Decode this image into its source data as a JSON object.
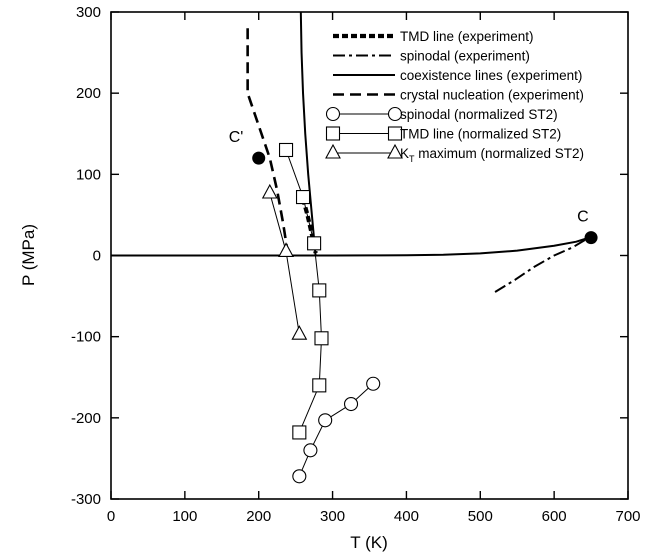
{
  "chart_data": {
    "type": "line",
    "xlabel": "T (K)",
    "ylabel": "P (MPa)",
    "xlim": [
      0,
      700
    ],
    "ylim": [
      -300,
      300
    ],
    "xticks": [
      0,
      100,
      200,
      300,
      400,
      500,
      600,
      700
    ],
    "yticks": [
      -300,
      -200,
      -100,
      0,
      100,
      200,
      300
    ],
    "grid": false,
    "legend_position": "top-right",
    "series": [
      {
        "name": "TMD line (experiment)",
        "style": "thick-dashed",
        "color": "#000000",
        "x": [
          260,
          263,
          266,
          268,
          270,
          272,
          274,
          276,
          277
        ],
        "y": [
          70,
          60,
          50,
          42,
          34,
          26,
          18,
          10,
          3
        ]
      },
      {
        "name": "spinodal (experiment)",
        "style": "dash-dot",
        "color": "#000000",
        "x": [
          520,
          547,
          573,
          600,
          625,
          647
        ],
        "y": [
          -45,
          -30,
          -14,
          0,
          10,
          22
        ]
      },
      {
        "name": "coexistence lines (experiment)",
        "style": "solid",
        "color": "#000000",
        "x": [
          0,
          100,
          200,
          273,
          300,
          350,
          400,
          450,
          500,
          550,
          600,
          630,
          647
        ],
        "y": [
          0,
          0,
          0,
          0,
          0,
          0.1,
          0.25,
          0.9,
          2.6,
          6,
          12,
          17,
          22
        ]
      },
      {
        "name": "coexistence lines (experiment)",
        "style": "solid",
        "color": "#000000",
        "x": [
          257,
          258,
          260,
          263,
          267,
          272,
          277
        ],
        "y": [
          300,
          250,
          200,
          150,
          100,
          50,
          0
        ]
      },
      {
        "name": "crystal nucleation (experiment)",
        "style": "dashed",
        "color": "#000000",
        "x": [
          185,
          185,
          200,
          215,
          225,
          233,
          239
        ],
        "y": [
          280,
          200,
          160,
          120,
          80,
          40,
          5
        ]
      },
      {
        "name": "spinodal (normalized ST2)",
        "style": "solid-circle",
        "color": "#000000",
        "x": [
          255,
          270,
          290,
          325,
          355
        ],
        "y": [
          -272,
          -240,
          -203,
          -183,
          -158
        ]
      },
      {
        "name": "TMD line (normalized ST2)",
        "style": "solid-square",
        "color": "#000000",
        "x": [
          237,
          260,
          275,
          282,
          285,
          282,
          255
        ],
        "y": [
          130,
          72,
          15,
          -43,
          -102,
          -160,
          -218
        ]
      },
      {
        "name": "KT maximum (normalized ST2)",
        "style": "solid-triangle",
        "color": "#000000",
        "x": [
          215,
          237,
          255
        ],
        "y": [
          77,
          5,
          -97
        ]
      }
    ],
    "points": [
      {
        "label": "C'",
        "x": 200,
        "y": 120
      },
      {
        "label": "C",
        "x": 650,
        "y": 22
      }
    ]
  },
  "legend": [
    {
      "text": "TMD line (experiment)",
      "style": "thick-dashed"
    },
    {
      "text": "spinodal (experiment)",
      "style": "dash-dot"
    },
    {
      "text": "coexistence lines (experiment)",
      "style": "solid"
    },
    {
      "text": "crystal nucleation (experiment)",
      "style": "dashed"
    },
    {
      "text": "spinodal (normalized ST2)",
      "style": "solid-circle"
    },
    {
      "text": "TMD line (normalized ST2)",
      "style": "solid-square"
    },
    {
      "text": "maximum (normalized ST2)",
      "style": "solid-triangle",
      "prefix": "K",
      "prefix_sub": "T"
    }
  ]
}
